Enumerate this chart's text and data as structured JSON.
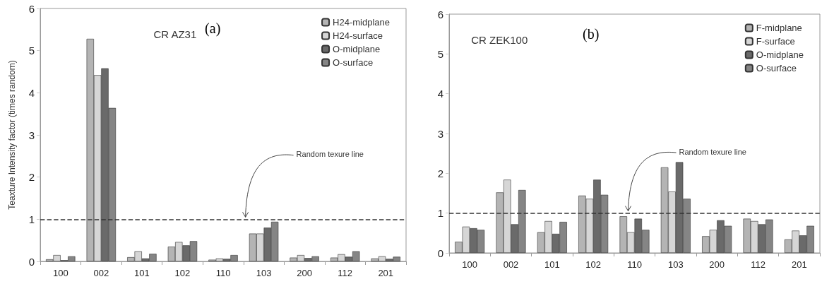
{
  "chart_data": [
    {
      "type": "bar",
      "title": "CR AZ31",
      "annotations": [
        "(a)"
      ],
      "ylabel": "Teaxture Intensity factor (times random)",
      "categories": [
        "100",
        "002",
        "101",
        "102",
        "110",
        "103",
        "200",
        "112",
        "201"
      ],
      "series": [
        {
          "name": "H24-midplane",
          "color": "#b4b4b4",
          "values": [
            0.05,
            5.28,
            0.1,
            0.35,
            0.04,
            0.66,
            0.09,
            0.09,
            0.07
          ]
        },
        {
          "name": "H24-surface",
          "color": "#d6d6d6",
          "values": [
            0.15,
            4.42,
            0.24,
            0.46,
            0.07,
            0.66,
            0.15,
            0.17,
            0.12
          ]
        },
        {
          "name": "O-midplane",
          "color": "#6a6a6a",
          "values": [
            0.03,
            4.58,
            0.07,
            0.38,
            0.06,
            0.8,
            0.08,
            0.11,
            0.06
          ]
        },
        {
          "name": "O-surface",
          "color": "#858585",
          "values": [
            0.12,
            3.64,
            0.18,
            0.48,
            0.15,
            0.94,
            0.12,
            0.24,
            0.11
          ]
        }
      ],
      "ylim": [
        0,
        6
      ],
      "yticks": [
        0,
        1,
        2,
        3,
        4,
        5,
        6
      ],
      "grid": false,
      "legend": "top right",
      "ref_lines": [
        {
          "axis": "y",
          "value": 1,
          "label": "Random texure line",
          "color": "#333333",
          "line_style": "dashed"
        }
      ]
    },
    {
      "type": "bar",
      "title": "CR ZEK100",
      "annotations": [
        "(b)"
      ],
      "categories": [
        "100",
        "002",
        "101",
        "102",
        "110",
        "103",
        "200",
        "112",
        "201"
      ],
      "series": [
        {
          "name": "F-midplane",
          "color": "#b4b4b4",
          "values": [
            0.28,
            1.52,
            0.52,
            1.44,
            0.92,
            2.15,
            0.42,
            0.86,
            0.34
          ]
        },
        {
          "name": "F-surface",
          "color": "#d6d6d6",
          "values": [
            0.66,
            1.84,
            0.8,
            1.36,
            0.52,
            1.54,
            0.58,
            0.8,
            0.56
          ]
        },
        {
          "name": "O-midplane",
          "color": "#6a6a6a",
          "values": [
            0.62,
            0.72,
            0.48,
            1.84,
            0.86,
            2.28,
            0.82,
            0.72,
            0.44
          ]
        },
        {
          "name": "O-surface",
          "color": "#858585",
          "values": [
            0.58,
            1.58,
            0.78,
            1.46,
            0.58,
            1.36,
            0.68,
            0.84,
            0.68
          ]
        }
      ],
      "ylim": [
        0,
        6
      ],
      "yticks": [
        0,
        1,
        2,
        3,
        4,
        5,
        6
      ],
      "grid": false,
      "legend": "top right",
      "ref_lines": [
        {
          "axis": "y",
          "value": 1,
          "label": "Random texure line",
          "color": "#333333",
          "line_style": "dashed"
        }
      ]
    }
  ]
}
